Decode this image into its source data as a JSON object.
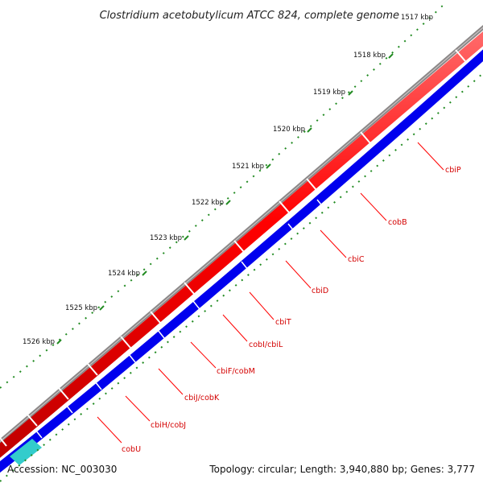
{
  "title": "Clostridium acetobutylicum ATCC 824, complete genome",
  "ticks": [
    "1517 kbp",
    "1518 kbp",
    "1519 kbp",
    "1520 kbp",
    "1521 kbp",
    "1522 kbp",
    "1523 kbp",
    "1524 kbp",
    "1525 kbp",
    "1526 kbp"
  ],
  "genes": [
    "cbiP",
    "cobB",
    "cbiC",
    "cbiD",
    "cbiT",
    "cobI/cbiL",
    "cbiF/cobM",
    "cbiJ/cobK",
    "cbiH/cobJ",
    "cobU"
  ],
  "footer": {
    "accession": "Accession: NC_003030",
    "topology": "Topology: circular; Length: 3,940,880 bp; Genes: 3,777"
  },
  "colors": {
    "forward_cds": "#ff0000",
    "reverse_cds": "#0000ff",
    "other_feature": "#33cccc",
    "backbone": "#808080",
    "ticks": "#228b22",
    "labels": "#ff0000"
  }
}
